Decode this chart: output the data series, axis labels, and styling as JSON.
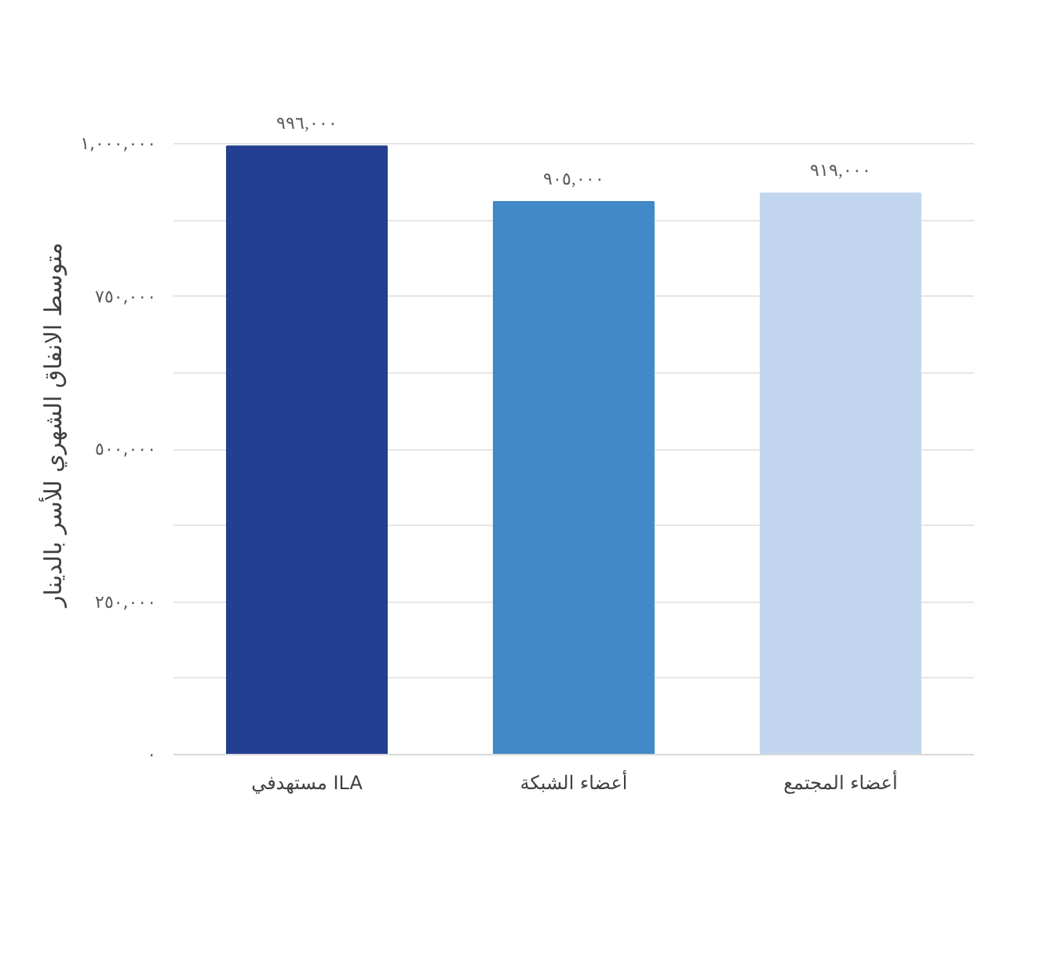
{
  "chart_data": {
    "type": "bar",
    "ylabel": "متوسط الانفاق الشهري للأسر بالدينار",
    "categories": [
      "مستهدفي ILA",
      "أعضاء الشبكة",
      "أعضاء المجتمع"
    ],
    "values": [
      996000,
      905000,
      919000
    ],
    "colors": [
      "#233f91",
      "#4189c7",
      "#c3d6ef"
    ],
    "value_labels": [
      "٩٩٦,٠٠٠",
      "٩٠٥,٠٠٠",
      "٩١٩,٠٠٠"
    ],
    "ylim": [
      0,
      1000000
    ],
    "yticks": [
      {
        "value": 0,
        "label": "٠"
      },
      {
        "value": 125000,
        "label": null
      },
      {
        "value": 250000,
        "label": "٢٥٠,٠٠٠"
      },
      {
        "value": 375000,
        "label": null
      },
      {
        "value": 500000,
        "label": "٥٠٠,٠٠٠"
      },
      {
        "value": 625000,
        "label": null
      },
      {
        "value": 750000,
        "label": "٧٥٠,٠٠٠"
      },
      {
        "value": 875000,
        "label": null
      },
      {
        "value": 1000000,
        "label": "١,٠٠٠,٠٠٠"
      }
    ],
    "grid": "y"
  }
}
